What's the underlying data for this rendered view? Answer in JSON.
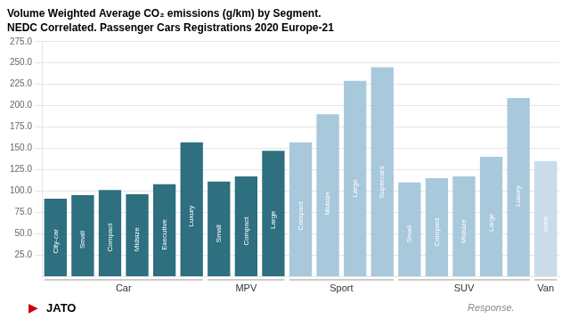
{
  "chart_data": {
    "type": "bar",
    "title": "Volume Weighted Average CO₂ emissions (g/km) by Segment.",
    "subtitle": "NEDC Correlated. Passenger Cars Registrations 2020 Europe-21",
    "categories": [
      "City-car",
      "Small",
      "Compact",
      "Midsize",
      "Executive",
      "Luxury",
      "Small",
      "Compact",
      "Large",
      "Compact",
      "Midsize",
      "Large",
      "Supercars",
      "Small",
      "Compact",
      "Midsize",
      "Large",
      "Luxury",
      "Vans"
    ],
    "groups": [
      "Car",
      "Car",
      "Car",
      "Car",
      "Car",
      "Car",
      "MPV",
      "MPV",
      "MPV",
      "Sport",
      "Sport",
      "Sport",
      "Sport",
      "SUV",
      "SUV",
      "SUV",
      "SUV",
      "SUV",
      "Van"
    ],
    "values": [
      91,
      95,
      101,
      96,
      108,
      157,
      111,
      117,
      147,
      157,
      190,
      229,
      245,
      110,
      115,
      117,
      140,
      209,
      135
    ],
    "colors": [
      "#2e6f80",
      "#2e6f80",
      "#2e6f80",
      "#2e6f80",
      "#2e6f80",
      "#2e6f80",
      "#2e6f80",
      "#2e6f80",
      "#2e6f80",
      "#a8c8dc",
      "#a8c8dc",
      "#a8c8dc",
      "#a8c8dc",
      "#a8c8dc",
      "#a8c8dc",
      "#a8c8dc",
      "#a8c8dc",
      "#a8c8dc",
      "#c8dcea"
    ],
    "ylim": [
      0,
      275
    ],
    "yticks": [
      {
        "value": 25,
        "label": "25.0"
      },
      {
        "value": 50,
        "label": "50.0"
      },
      {
        "value": 75,
        "label": "75.0"
      },
      {
        "value": 100,
        "label": "100.0"
      },
      {
        "value": 125,
        "label": "125.0"
      },
      {
        "value": 150,
        "label": "150.0"
      },
      {
        "value": 175,
        "label": "175.0"
      },
      {
        "value": 200,
        "label": "200.0"
      },
      {
        "value": 225,
        "label": "225.0"
      },
      {
        "value": 250,
        "label": "250.0"
      },
      {
        "value": 275,
        "label": "275.0"
      }
    ],
    "grid": true,
    "tick_labels": "y",
    "annotations": [
      "▶",
      "JATO",
      "Response."
    ]
  }
}
